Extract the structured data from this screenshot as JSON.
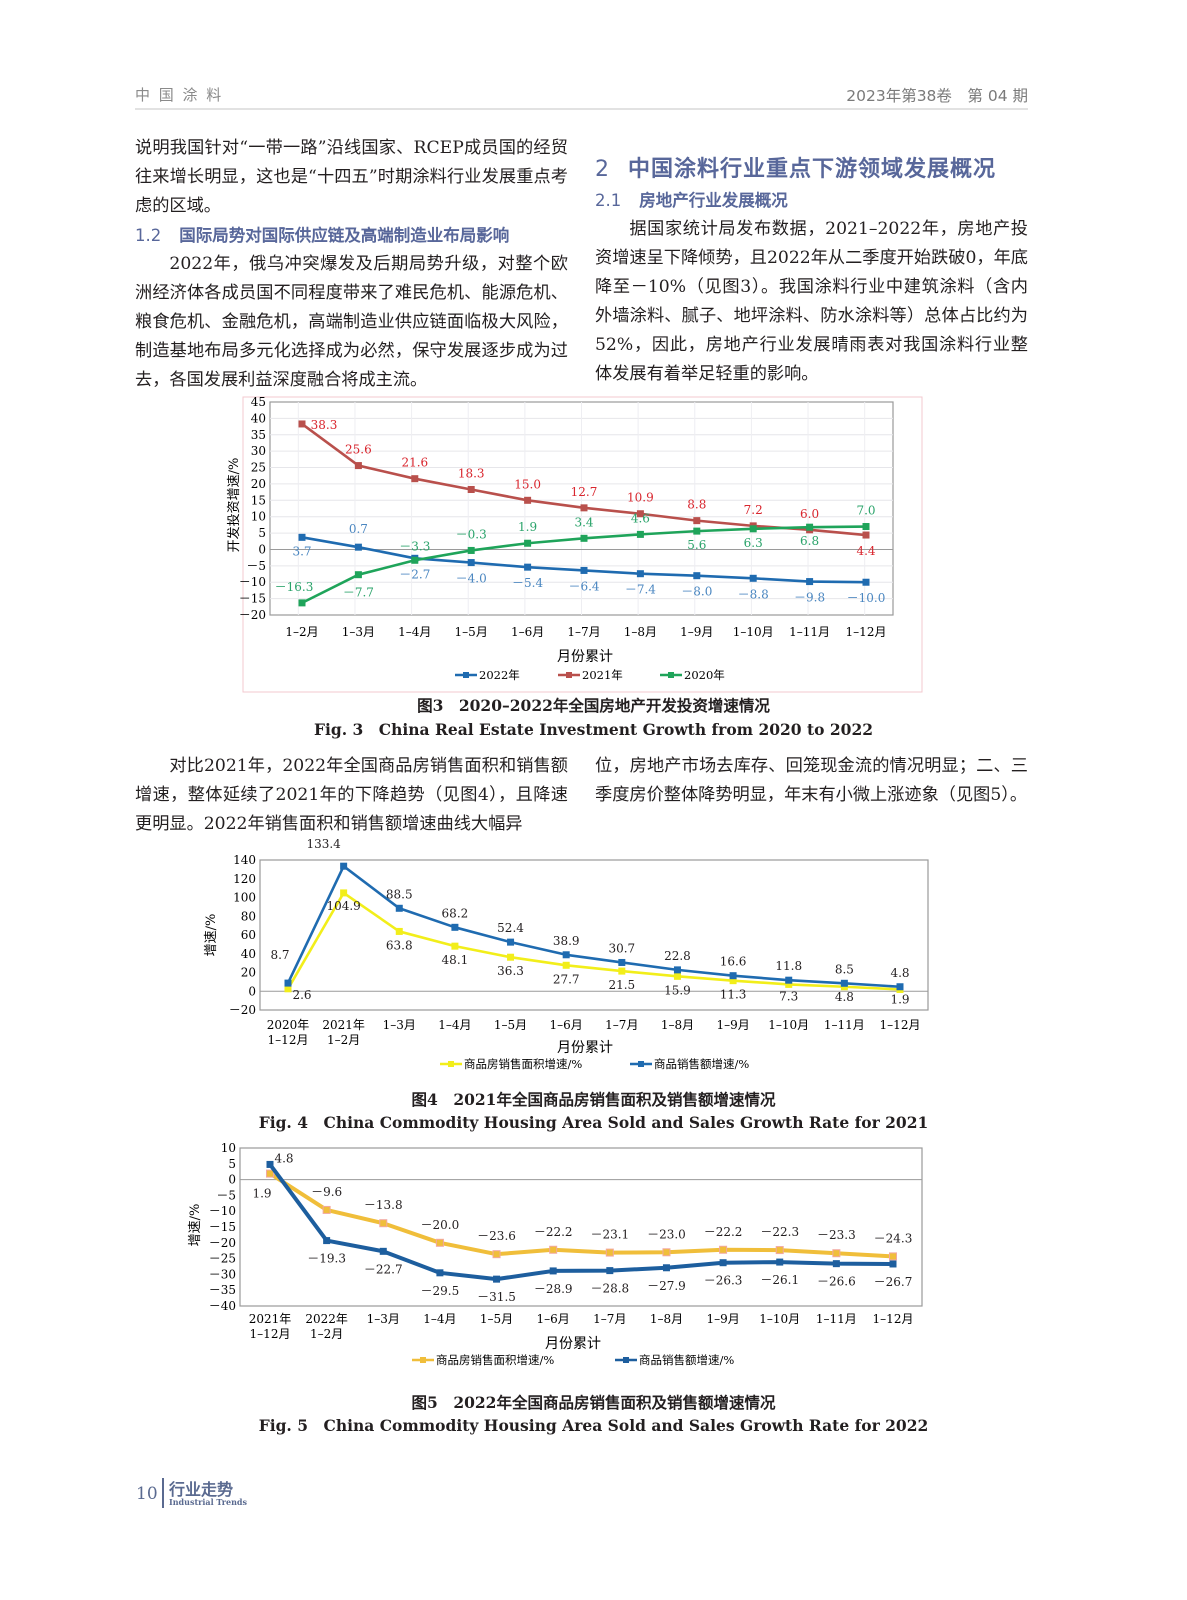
{
  "header": {
    "journal": "中 国 涂 料",
    "issue": "2023年第38卷　第 04 期"
  },
  "left_column": {
    "para1": "说明我国针对“一带一路”沿线国家、RCEP成员国的经贸往来增长明显，这也是“十四五”时期涂料行业发展重点考虑的区域。",
    "section_1_2": {
      "num": "1.2",
      "title": "国际局势对国际供应链及高端制造业布局影响"
    },
    "para2": "2022年，俄乌冲突爆发及后期局势升级，对整个欧洲经济体各成员国不同程度带来了难民危机、能源危机、粮食危机、金融危机，高端制造业供应链面临极大风险，制造基地布局多元化选择成为必然，保守发展逐步成为过去，各国发展利益深度融合将成主流。"
  },
  "right_column": {
    "section_2": {
      "num": "2",
      "title": "中国涂料行业重点下游领域发展概况"
    },
    "section_2_1": {
      "num": "2.1",
      "title": "房地产行业发展概况"
    },
    "para1": "据国家统计局发布数据，2021–2022年，房地产投资增速呈下降倾势，且2022年从二季度开始跌破0，年底降至－10%（见图3）。我国涂料行业中建筑涂料（含内外墙涂料、腻子、地坪涂料、防水涂料等）总体占比约为52%，因此，房地产行业发展晴雨表对我国涂料行业整体发展有着举足轻重的影响。"
  },
  "mid_text": {
    "left": "对比2021年，2022年全国商品房销售面积和销售额增速，整体延续了2021年的下降趋势（见图4），且降速更明显。2022年销售面积和销售额增速曲线大幅异",
    "right": "位，房地产市场去库存、回笼现金流的情况明显；二、三季度房价整体降势明显，年末有小微上涨迹象（见图5）。"
  },
  "captions": {
    "fig3_cn": "图3　2020–2022年全国房地产开发投资增速情况",
    "fig3_en": "Fig. 3　China Real Estate Investment Growth from 2020 to 2022",
    "fig4_cn": "图4　2021年全国商品房销售面积及销售额增速情况",
    "fig4_en": "Fig. 4　China Commodity Housing Area Sold and Sales Growth Rate for 2021",
    "fig5_cn": "图5　2022年全国商品房销售面积及销售额增速情况",
    "fig5_en": "Fig. 5　China Commodity Housing Area Sold and Sales Growth Rate for 2022"
  },
  "footer": {
    "page": "10",
    "section": "行业走势",
    "section_en": "Industrial Trends"
  },
  "chart_data": [
    {
      "type": "line",
      "ylabel": "开发投资增速/%",
      "xlabel": "月份累计",
      "ylim": [
        -20,
        45
      ],
      "yticks": [
        45,
        40,
        35,
        30,
        25,
        20,
        15,
        10,
        5,
        0,
        -5,
        -10,
        -15,
        -20
      ],
      "grid": true,
      "legend": "bottom",
      "categories": [
        "1–2月",
        "1–3月",
        "1–4月",
        "1–5月",
        "1–6月",
        "1–7月",
        "1–8月",
        "1–9月",
        "1–10月",
        "1–11月",
        "1–12月"
      ],
      "series": [
        {
          "name": "2022年",
          "color": "#1f6bb0",
          "label_color": "#4a86c0",
          "values": [
            3.7,
            0.7,
            -2.7,
            -4.0,
            -5.4,
            -6.4,
            -7.4,
            -8.0,
            -8.8,
            -9.8,
            -10.0
          ]
        },
        {
          "name": "2021年",
          "color": "#b9504c",
          "label_color": "#d9262e",
          "values": [
            38.3,
            25.6,
            21.6,
            18.3,
            15.0,
            12.7,
            10.9,
            8.8,
            7.2,
            6.0,
            4.4
          ]
        },
        {
          "name": "2020年",
          "color": "#1fa45a",
          "label_color": "#2aa36a",
          "values": [
            -16.3,
            -7.7,
            -3.3,
            -0.3,
            1.9,
            3.4,
            4.6,
            5.6,
            6.3,
            6.8,
            7.0
          ]
        }
      ]
    },
    {
      "type": "line",
      "ylabel": "增速/%",
      "xlabel": "月份累计",
      "ylim": [
        -20,
        140
      ],
      "yticks": [
        140,
        120,
        100,
        80,
        60,
        40,
        20,
        0,
        -20
      ],
      "grid": false,
      "legend": "bottom",
      "categories": [
        "2020年\n1–12月",
        "2021年\n1–2月",
        "1–3月",
        "1–4月",
        "1–5月",
        "1–6月",
        "1–7月",
        "1–8月",
        "1–9月",
        "1–10月",
        "1–11月",
        "1–12月"
      ],
      "series": [
        {
          "name": "商品房销售面积增速/%",
          "color": "#f2ee1a",
          "label_color": "#231f20",
          "values": [
            2.6,
            104.9,
            63.8,
            48.1,
            36.3,
            27.7,
            21.5,
            15.9,
            11.3,
            7.3,
            4.8,
            1.9
          ]
        },
        {
          "name": "商品销售额增速/%",
          "color": "#1f6bb0",
          "label_color": "#231f20",
          "values": [
            8.7,
            133.4,
            88.5,
            68.2,
            52.4,
            38.9,
            30.7,
            22.8,
            16.6,
            11.8,
            8.5,
            4.8
          ]
        }
      ]
    },
    {
      "type": "line",
      "ylabel": "增速/%",
      "xlabel": "月份累计",
      "ylim": [
        -40,
        10
      ],
      "yticks": [
        10,
        5,
        0,
        -5,
        -10,
        -15,
        -20,
        -25,
        -30,
        -35,
        -40
      ],
      "grid": false,
      "legend": "bottom",
      "categories": [
        "2021年\n1–12月",
        "2022年\n1–2月",
        "1–3月",
        "1–4月",
        "1–5月",
        "1–6月",
        "1–7月",
        "1–8月",
        "1–9月",
        "1–10月",
        "1–11月",
        "1–12月"
      ],
      "series": [
        {
          "name": "商品房销售面积增速/%",
          "color": "#f0be3a",
          "label_color": "#231f20",
          "values": [
            1.9,
            -9.6,
            -13.8,
            -20.0,
            -23.6,
            -22.2,
            -23.1,
            -23.0,
            -22.2,
            -22.3,
            -23.3,
            -24.3
          ]
        },
        {
          "name": "商品销售额增速/%",
          "color": "#1d5e9e",
          "label_color": "#231f20",
          "values": [
            4.8,
            -19.3,
            -22.7,
            -29.5,
            -31.5,
            -28.9,
            -28.8,
            -27.9,
            -26.3,
            -26.1,
            -26.6,
            -26.7
          ]
        }
      ]
    }
  ]
}
